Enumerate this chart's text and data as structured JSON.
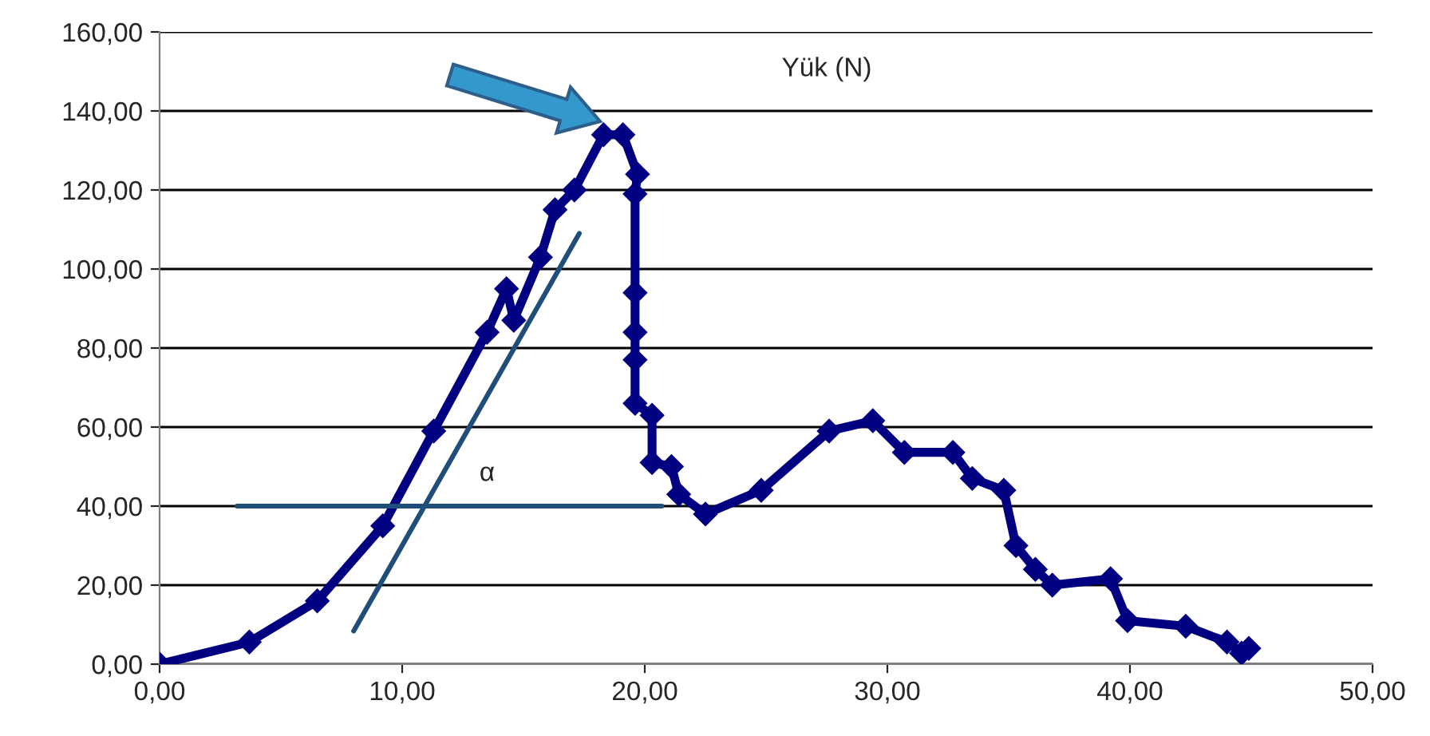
{
  "chart_data": {
    "type": "line",
    "title": "Yük (N)",
    "grid": "y",
    "marker": "diamond",
    "line_style": "solid",
    "xlim": [
      0,
      50
    ],
    "xticks": [
      {
        "value": 0,
        "label": "0,00"
      },
      {
        "value": 10,
        "label": "10,00"
      },
      {
        "value": 20,
        "label": "20,00"
      },
      {
        "value": 30,
        "label": "30,00"
      },
      {
        "value": 40,
        "label": "40,00"
      },
      {
        "value": 50,
        "label": "50,00"
      }
    ],
    "ylim": [
      0,
      160
    ],
    "yticks": [
      {
        "value": 0,
        "label": "0,00"
      },
      {
        "value": 20,
        "label": "20,00"
      },
      {
        "value": 40,
        "label": "40,00"
      },
      {
        "value": 60,
        "label": "60,00"
      },
      {
        "value": 80,
        "label": "80,00"
      },
      {
        "value": 100,
        "label": "100,00"
      },
      {
        "value": 120,
        "label": "120,00"
      },
      {
        "value": 140,
        "label": "140,00"
      },
      {
        "value": 160,
        "label": "160,00"
      }
    ],
    "annotations": [
      "α"
    ],
    "series": [
      {
        "color": "#000080",
        "x": [
          0,
          3.7,
          6.5,
          9.2,
          11.3,
          13.5,
          14.3,
          14.6,
          15.7,
          16.3,
          17.1,
          18.3,
          19.1,
          19.7,
          19.6,
          19.6,
          19.6,
          19.6,
          19.6,
          20.3,
          20.3,
          21.1,
          21.4,
          22.5,
          24.8,
          27.6,
          29.4,
          30.7,
          32.7,
          33.5,
          34.8,
          35.3,
          36.1,
          36.8,
          39.2,
          39.9,
          42.3,
          44,
          44.6,
          44.9
        ],
        "values": [
          0,
          5.6,
          16,
          35,
          59,
          84,
          95,
          87,
          103,
          115,
          120,
          134,
          134,
          124,
          119,
          94,
          84,
          77,
          66,
          63,
          51,
          50,
          43,
          38,
          44,
          59,
          61.6,
          53.6,
          53.6,
          47,
          44,
          30,
          24,
          20,
          21.6,
          11,
          9.6,
          5.6,
          2.8,
          4
        ]
      },
      {
        "type": "line",
        "color": "#1f4e79",
        "marker": "none",
        "x": [
          8.0,
          17.3
        ],
        "values": [
          8.4,
          109
        ]
      },
      {
        "type": "line",
        "color": "#1f4e79",
        "marker": "none",
        "x": [
          3.2,
          20.7
        ],
        "values": [
          40,
          40
        ]
      }
    ]
  }
}
